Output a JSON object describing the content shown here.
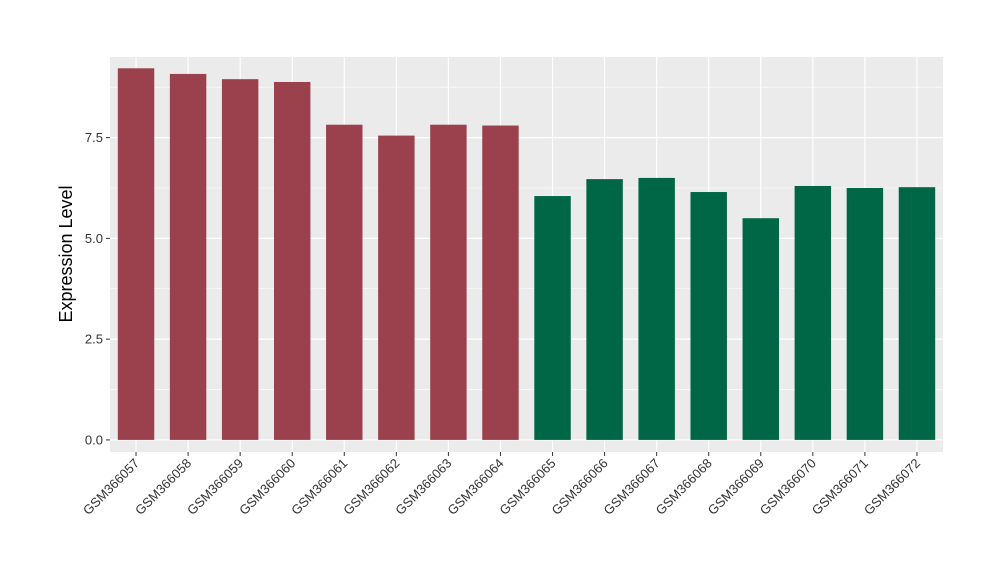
{
  "chart_data": {
    "type": "bar",
    "title": "",
    "xlabel": "",
    "ylabel": "Expression Level",
    "ylim": [
      -0.3,
      9.5
    ],
    "yticks": [
      0.0,
      2.5,
      5.0,
      7.5
    ],
    "ytick_labels": [
      "0.0",
      "2.5",
      "5.0",
      "7.5"
    ],
    "grid": true,
    "legend": "none",
    "categories": [
      "GSM366057",
      "GSM366058",
      "GSM366059",
      "GSM366060",
      "GSM366061",
      "GSM366062",
      "GSM366063",
      "GSM366064",
      "GSM366065",
      "GSM366066",
      "GSM366067",
      "GSM366068",
      "GSM366069",
      "GSM366070",
      "GSM366071",
      "GSM366072"
    ],
    "values": [
      9.22,
      9.08,
      8.95,
      8.88,
      7.82,
      7.55,
      7.82,
      7.8,
      6.05,
      6.47,
      6.5,
      6.15,
      5.5,
      6.3,
      6.25,
      6.27
    ],
    "bar_colors": [
      "#9b414e",
      "#9b414e",
      "#9b414e",
      "#9b414e",
      "#9b414e",
      "#9b414e",
      "#9b414e",
      "#9b414e",
      "#006746",
      "#006746",
      "#006746",
      "#006746",
      "#006746",
      "#006746",
      "#006746",
      "#006746"
    ],
    "panel_background": "#ebebeb",
    "gridline_color": "#ffffff"
  }
}
